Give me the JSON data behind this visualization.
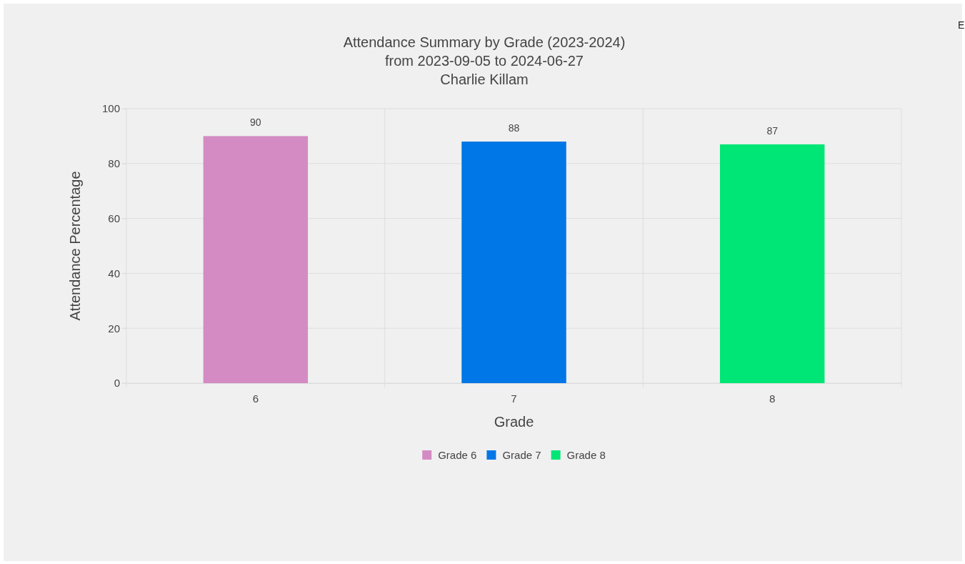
{
  "chart_data": {
    "type": "bar",
    "title": "Attendance Summary by Grade (2023-2024)",
    "subtitle": "from 2023-09-05 to 2024-06-27\nCharlie Killam",
    "xlabel": "Grade",
    "ylabel": "Attendance Percentage",
    "categories": [
      "6",
      "7",
      "8"
    ],
    "series": [
      {
        "name": "Grade 6",
        "color": "#d48bc3",
        "values": [
          90,
          null,
          null
        ]
      },
      {
        "name": "Grade 7",
        "color": "#0077e6",
        "values": [
          null,
          88,
          null
        ]
      },
      {
        "name": "Grade 8",
        "color": "#00e676",
        "values": [
          null,
          null,
          87
        ]
      }
    ],
    "ylim": [
      0,
      100
    ],
    "yticks": [
      0,
      20,
      40,
      60,
      80,
      100
    ],
    "grid": true,
    "legend": "bottom",
    "data_labels": true,
    "annotations": [
      "E"
    ]
  }
}
